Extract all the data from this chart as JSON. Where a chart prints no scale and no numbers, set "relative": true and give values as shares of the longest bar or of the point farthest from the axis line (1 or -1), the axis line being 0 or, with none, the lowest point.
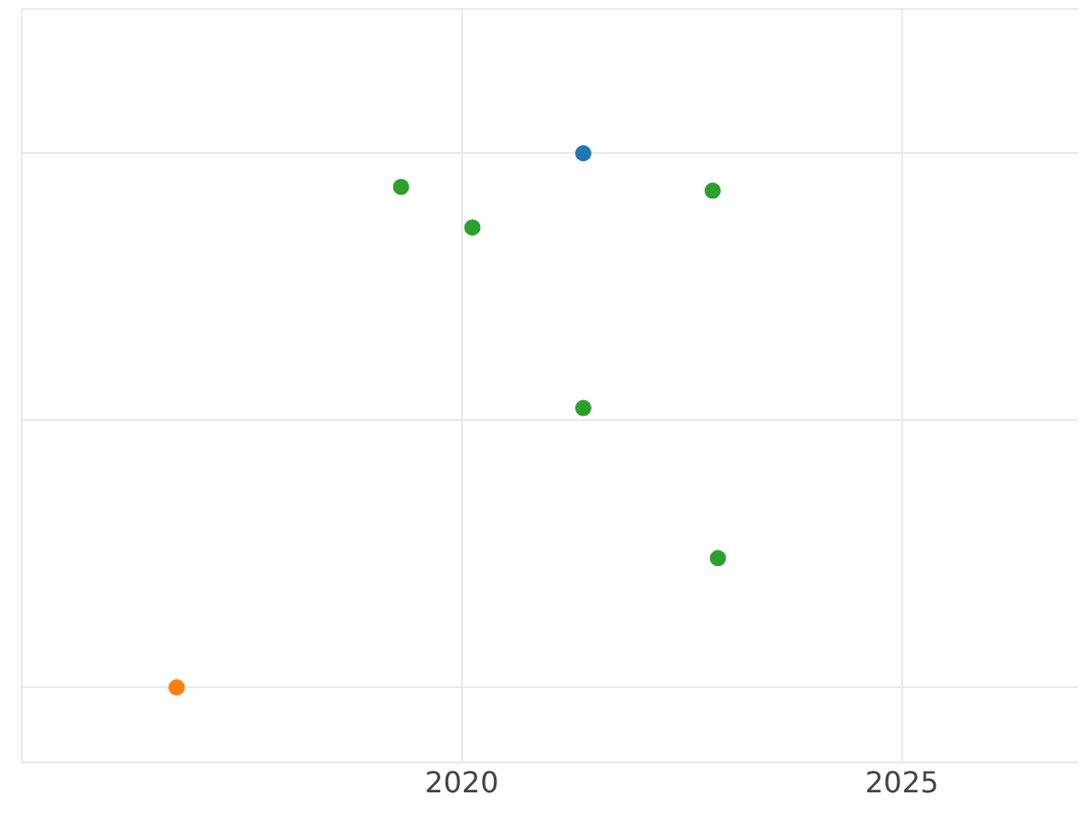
{
  "chart_data": {
    "type": "scatter",
    "relative": true,
    "xlim": [
      2015,
      2027
    ],
    "xticks": [
      {
        "value": 2015,
        "label": null
      },
      2020,
      2025
    ],
    "grid": true,
    "legend": false,
    "marker": "circle",
    "tick_labels": "x",
    "series": [
      {
        "color": "#1f77b4",
        "x": [
          2021.38
        ],
        "values": [
          1
        ]
      },
      {
        "color": "#ff7f0e",
        "x": [
          2016.76
        ],
        "values": [
          0
        ]
      },
      {
        "color": "#2ca02c",
        "x": [
          2019.31,
          2020.12,
          2021.38,
          2022.85,
          2022.91
        ],
        "values": [
          0.937,
          0.861,
          0.523,
          0.93,
          0.242
        ]
      }
    ]
  }
}
